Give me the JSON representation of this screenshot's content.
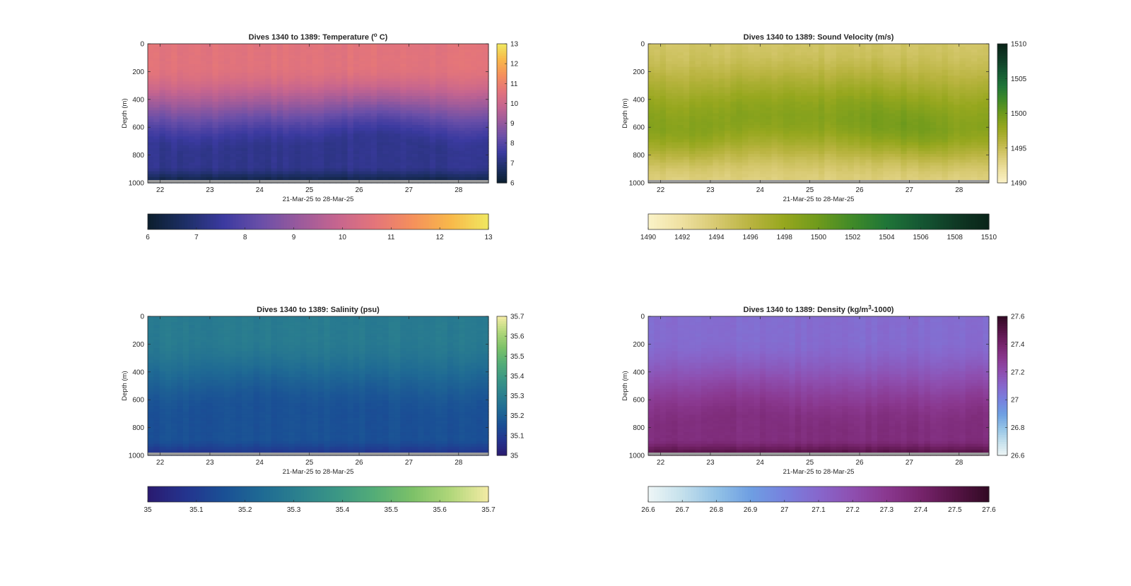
{
  "chart_data": [
    {
      "type": "heatmap",
      "title_parts": [
        "Dives 1340 to 1389: Temperature (",
        "o",
        " C)"
      ],
      "xlabel": "21-Mar-25 to 28-Mar-25",
      "ylabel": "Depth (m)",
      "x_ticks": [
        "22",
        "23",
        "24",
        "25",
        "26",
        "27",
        "28"
      ],
      "x_range": [
        21.75,
        28.6
      ],
      "y_ticks": [
        "0",
        "200",
        "400",
        "600",
        "800",
        "1000"
      ],
      "ylim": [
        0,
        1000
      ],
      "clim": [
        6,
        13
      ],
      "colorbar_ticks": [
        "6",
        "7",
        "8",
        "9",
        "10",
        "11",
        "12",
        "13"
      ],
      "colorbar_h_ticks": [
        "6",
        "7",
        "8",
        "9",
        "10",
        "11",
        "12",
        "13"
      ],
      "colormap": [
        "#0b1e2d",
        "#1d2f66",
        "#3b3aa0",
        "#6a4fa8",
        "#9a5a9c",
        "#c6658f",
        "#e4757a",
        "#f5905c",
        "#f8b84a",
        "#f0e860"
      ],
      "surface_value": 10.6,
      "deep_value": 7.3,
      "bottom_value": 6.4,
      "transition_depth": 500
    },
    {
      "type": "heatmap",
      "title_parts": [
        "Dives 1340 to 1389: Sound Velocity (m/s)"
      ],
      "xlabel": "21-Mar-25 to 28-Mar-25",
      "ylabel": "Depth (m)",
      "x_ticks": [
        "22",
        "23",
        "24",
        "25",
        "26",
        "27",
        "28"
      ],
      "x_range": [
        21.75,
        28.6
      ],
      "y_ticks": [
        "0",
        "200",
        "400",
        "600",
        "800",
        "1000"
      ],
      "ylim": [
        0,
        1000
      ],
      "clim": [
        1490,
        1510
      ],
      "colorbar_ticks": [
        "1490",
        "1495",
        "1500",
        "1505",
        "1510"
      ],
      "colorbar_h_ticks": [
        "1490",
        "1492",
        "1494",
        "1496",
        "1498",
        "1500",
        "1502",
        "1504",
        "1506",
        "1508",
        "1510"
      ],
      "colormap": [
        "#fbf3c8",
        "#eee0a0",
        "#d7c970",
        "#b9b440",
        "#96a71e",
        "#6e9a1c",
        "#3f8a28",
        "#1f7538",
        "#155733",
        "#0f3a25",
        "#0a2318"
      ],
      "surface_value": 1494.5,
      "mid_value": 1498.8,
      "deep_value": 1493.5,
      "transition_depth": 550
    },
    {
      "type": "heatmap",
      "title_parts": [
        "Dives 1340 to 1389: Salinity (psu)"
      ],
      "xlabel": "21-Mar-25 to 28-Mar-25",
      "ylabel": "Depth (m)",
      "x_ticks": [
        "22",
        "23",
        "24",
        "25",
        "26",
        "27",
        "28"
      ],
      "x_range": [
        21.75,
        28.6
      ],
      "y_ticks": [
        "0",
        "200",
        "400",
        "600",
        "800",
        "1000"
      ],
      "ylim": [
        0,
        1000
      ],
      "clim": [
        35,
        35.7
      ],
      "colorbar_ticks": [
        "35",
        "35.1",
        "35.2",
        "35.3",
        "35.4",
        "35.5",
        "35.6",
        "35.7"
      ],
      "colorbar_h_ticks": [
        "35",
        "35.1",
        "35.2",
        "35.3",
        "35.4",
        "35.5",
        "35.6",
        "35.7"
      ],
      "colormap": [
        "#2a1a70",
        "#24348e",
        "#1a4f95",
        "#1f6a94",
        "#2c818e",
        "#3b9785",
        "#54ad77",
        "#7cc168",
        "#b1d77a",
        "#f4eba5"
      ],
      "surface_value": 35.29,
      "deep_value": 35.16,
      "bottom_value": 35.08,
      "transition_depth": 450
    },
    {
      "type": "heatmap",
      "title_parts": [
        "Dives 1340 to 1389: Density (kg/m",
        "3",
        "-1000)"
      ],
      "xlabel": "21-Mar-25 to 28-Mar-25",
      "ylabel": "Depth (m)",
      "x_ticks": [
        "22",
        "23",
        "24",
        "25",
        "26",
        "27",
        "28"
      ],
      "x_range": [
        21.75,
        28.6
      ],
      "y_ticks": [
        "0",
        "200",
        "400",
        "600",
        "800",
        "1000"
      ],
      "ylim": [
        0,
        1000
      ],
      "clim": [
        26.6,
        27.6
      ],
      "colorbar_ticks": [
        "26.6",
        "26.8",
        "27",
        "27.2",
        "27.4",
        "27.6"
      ],
      "colorbar_h_ticks": [
        "26.6",
        "26.7",
        "26.8",
        "26.9",
        "27",
        "27.1",
        "27.2",
        "27.3",
        "27.4",
        "27.5",
        "27.6"
      ],
      "colormap": [
        "#eef6f6",
        "#c4e0ec",
        "#93c2e6",
        "#6e9fe2",
        "#7781de",
        "#8767cc",
        "#8e4fb0",
        "#8a388f",
        "#76246c",
        "#561446",
        "#320a24"
      ],
      "surface_value": 27.08,
      "deep_value": 27.35,
      "bottom_value": 27.5,
      "transition_depth": 550
    }
  ]
}
